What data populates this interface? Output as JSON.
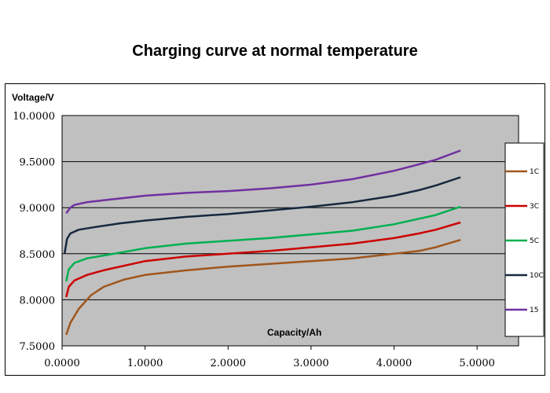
{
  "chart_data": {
    "type": "line",
    "title": "Charging curve at normal temperature",
    "xlabel": "Capacity/Ah",
    "ylabel": "Voltage/V",
    "xlim": [
      0,
      5.5
    ],
    "ylim": [
      7.5,
      10
    ],
    "xticks": [
      "0.0000",
      "1.0000",
      "2.0000",
      "3.0000",
      "4.0000",
      "5.0000"
    ],
    "yticks": [
      "7.5000",
      "8.0000",
      "8.5000",
      "9.0000",
      "9.5000",
      "10.0000"
    ],
    "grid": "horizontal",
    "legend_position": "right",
    "series": [
      {
        "name": "1C",
        "color": "#a0561c",
        "x": [
          0.05,
          0.1,
          0.2,
          0.35,
          0.5,
          0.75,
          1,
          1.5,
          2,
          2.5,
          3,
          3.5,
          4,
          4.3,
          4.5,
          4.8
        ],
        "y": [
          7.62,
          7.75,
          7.9,
          8.05,
          8.14,
          8.22,
          8.27,
          8.32,
          8.36,
          8.39,
          8.42,
          8.45,
          8.5,
          8.53,
          8.57,
          8.65
        ]
      },
      {
        "name": "3C",
        "color": "#cc0000",
        "x": [
          0.05,
          0.08,
          0.15,
          0.3,
          0.5,
          1,
          1.5,
          2,
          2.5,
          3,
          3.5,
          4,
          4.3,
          4.5,
          4.8
        ],
        "y": [
          8.03,
          8.14,
          8.21,
          8.27,
          8.32,
          8.42,
          8.47,
          8.5,
          8.53,
          8.57,
          8.61,
          8.67,
          8.72,
          8.76,
          8.84
        ]
      },
      {
        "name": "5C",
        "color": "#00b050",
        "x": [
          0.05,
          0.08,
          0.15,
          0.3,
          0.5,
          1,
          1.5,
          2,
          2.5,
          3,
          3.5,
          4,
          4.3,
          4.5,
          4.8
        ],
        "y": [
          8.2,
          8.33,
          8.4,
          8.45,
          8.48,
          8.56,
          8.61,
          8.64,
          8.67,
          8.71,
          8.75,
          8.82,
          8.88,
          8.92,
          9.01
        ]
      },
      {
        "name": "10C",
        "color": "#17283f",
        "x": [
          0.03,
          0.06,
          0.1,
          0.2,
          0.4,
          0.7,
          1,
          1.5,
          2,
          2.5,
          3,
          3.5,
          4,
          4.3,
          4.5,
          4.8
        ],
        "y": [
          8.5,
          8.66,
          8.72,
          8.76,
          8.79,
          8.83,
          8.86,
          8.9,
          8.93,
          8.97,
          9.01,
          9.06,
          9.13,
          9.19,
          9.24,
          9.33
        ]
      },
      {
        "name": "15",
        "color": "#7030a0",
        "x": [
          0.05,
          0.1,
          0.15,
          0.3,
          0.5,
          1,
          1.5,
          2,
          2.5,
          3,
          3.5,
          4,
          4.3,
          4.5,
          4.8
        ],
        "y": [
          8.94,
          9.0,
          9.03,
          9.06,
          9.08,
          9.13,
          9.16,
          9.18,
          9.21,
          9.25,
          9.31,
          9.4,
          9.47,
          9.52,
          9.62
        ]
      }
    ]
  }
}
